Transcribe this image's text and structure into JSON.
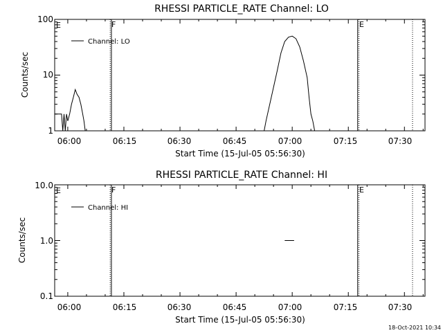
{
  "footer": {
    "timestamp": "18-Oct-2021 10:34"
  },
  "chart_data": [
    {
      "type": "line",
      "title": "RHESSI PARTICLE_RATE Channel: LO",
      "xlabel": "Start Time (15-Jul-05 05:56:30)",
      "ylabel": "Counts/sec",
      "y_scale": "log",
      "ylim": [
        1,
        100
      ],
      "y_ticks": [
        1,
        10,
        100
      ],
      "y_tick_labels": [
        "1",
        "10",
        "100"
      ],
      "xlim": [
        "05:56:30",
        "07:35:30"
      ],
      "x_ticks": [
        "06:00",
        "06:15",
        "06:30",
        "06:45",
        "07:00",
        "07:15",
        "07:30"
      ],
      "legend": {
        "label": "Channel: LO",
        "placement": "top-left"
      },
      "grid": false,
      "event_markers": [
        {
          "label": "E",
          "time": "05:56:30",
          "style": "solid"
        },
        {
          "label": "F",
          "time": "06:11:20",
          "style": "dotted"
        },
        {
          "label": "",
          "time": "06:11:40",
          "style": "solid"
        },
        {
          "label": "E",
          "time": "07:17:30",
          "style": "solid"
        },
        {
          "label": "",
          "time": "07:17:50",
          "style": "dotted"
        },
        {
          "label": "",
          "time": "07:32:10",
          "style": "dotted"
        }
      ],
      "series": [
        {
          "name": "Channel: LO",
          "points": [
            [
              "05:56:30",
              2
            ],
            [
              "05:58:20",
              2
            ],
            [
              "05:58:40",
              1
            ],
            [
              "05:59:00",
              2
            ],
            [
              "05:59:20",
              1
            ],
            [
              "05:59:40",
              2
            ],
            [
              "06:00:00",
              1.5
            ],
            [
              "06:00:30",
              2
            ],
            [
              "06:01:00",
              3
            ],
            [
              "06:01:30",
              4
            ],
            [
              "06:02:00",
              5.5
            ],
            [
              "06:02:30",
              4.5
            ],
            [
              "06:03:00",
              4
            ],
            [
              "06:03:30",
              3
            ],
            [
              "06:04:00",
              2
            ],
            [
              "06:04:20",
              1.5
            ],
            [
              "06:04:40",
              1
            ],
            [
              "06:05:00",
              1
            ],
            [
              "06:52:30",
              1
            ],
            [
              "06:53:00",
              1.5
            ],
            [
              "06:54:00",
              3
            ],
            [
              "06:55:00",
              6
            ],
            [
              "06:56:00",
              12
            ],
            [
              "06:57:00",
              25
            ],
            [
              "06:58:00",
              40
            ],
            [
              "06:59:00",
              48
            ],
            [
              "07:00:00",
              50
            ],
            [
              "07:01:00",
              45
            ],
            [
              "07:02:00",
              32
            ],
            [
              "07:03:00",
              18
            ],
            [
              "07:04:00",
              9
            ],
            [
              "07:04:30",
              4
            ],
            [
              "07:05:00",
              2
            ],
            [
              "07:05:30",
              1.5
            ],
            [
              "07:06:00",
              1
            ]
          ]
        }
      ]
    },
    {
      "type": "line",
      "title": "RHESSI PARTICLE_RATE Channel: HI",
      "xlabel": "Start Time (15-Jul-05 05:56:30)",
      "ylabel": "Counts/sec",
      "y_scale": "log",
      "ylim": [
        0.1,
        10
      ],
      "y_ticks": [
        0.1,
        1,
        10
      ],
      "y_tick_labels": [
        "0.1",
        "1.0",
        "10.0"
      ],
      "xlim": [
        "05:56:30",
        "07:35:30"
      ],
      "x_ticks": [
        "06:00",
        "06:15",
        "06:30",
        "06:45",
        "07:00",
        "07:15",
        "07:30"
      ],
      "legend": {
        "label": "Channel: HI",
        "placement": "top-left"
      },
      "grid": false,
      "event_markers": [
        {
          "label": "E",
          "time": "05:56:30",
          "style": "solid"
        },
        {
          "label": "F",
          "time": "06:11:20",
          "style": "dotted"
        },
        {
          "label": "",
          "time": "06:11:40",
          "style": "solid"
        },
        {
          "label": "E",
          "time": "07:17:30",
          "style": "solid"
        },
        {
          "label": "",
          "time": "07:17:50",
          "style": "dotted"
        },
        {
          "label": "",
          "time": "07:32:10",
          "style": "dotted"
        }
      ],
      "series": [
        {
          "name": "Channel: HI",
          "points": [
            [
              "06:58:00",
              1
            ],
            [
              "07:00:30",
              1
            ]
          ]
        }
      ]
    }
  ]
}
